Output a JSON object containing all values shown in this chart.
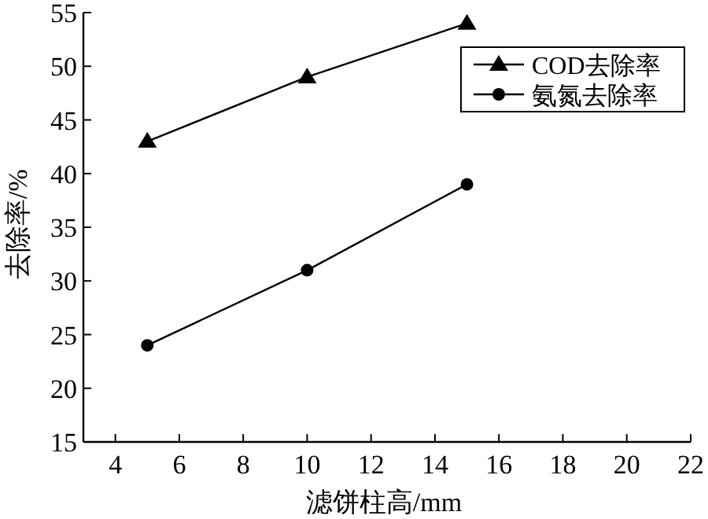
{
  "chart_data": {
    "type": "line",
    "xlabel": "滤饼柱高/mm",
    "ylabel": "去除率/%",
    "x": [
      5,
      10,
      15
    ],
    "series": [
      {
        "name": "COD去除率",
        "color": "#000000",
        "values": [
          43,
          49,
          54
        ],
        "marker": "triangle"
      },
      {
        "name": "氨氮去除率",
        "color": "#000000",
        "values": [
          24,
          31,
          39
        ],
        "marker": "circle"
      }
    ],
    "xlim": [
      3,
      22
    ],
    "xticks": [
      4,
      6,
      8,
      10,
      12,
      14,
      16,
      18,
      20,
      22
    ],
    "ylim": [
      15,
      55
    ],
    "yticks": [
      15,
      20,
      25,
      30,
      35,
      40,
      45,
      50,
      55
    ],
    "grid": false,
    "legend": "top right"
  }
}
